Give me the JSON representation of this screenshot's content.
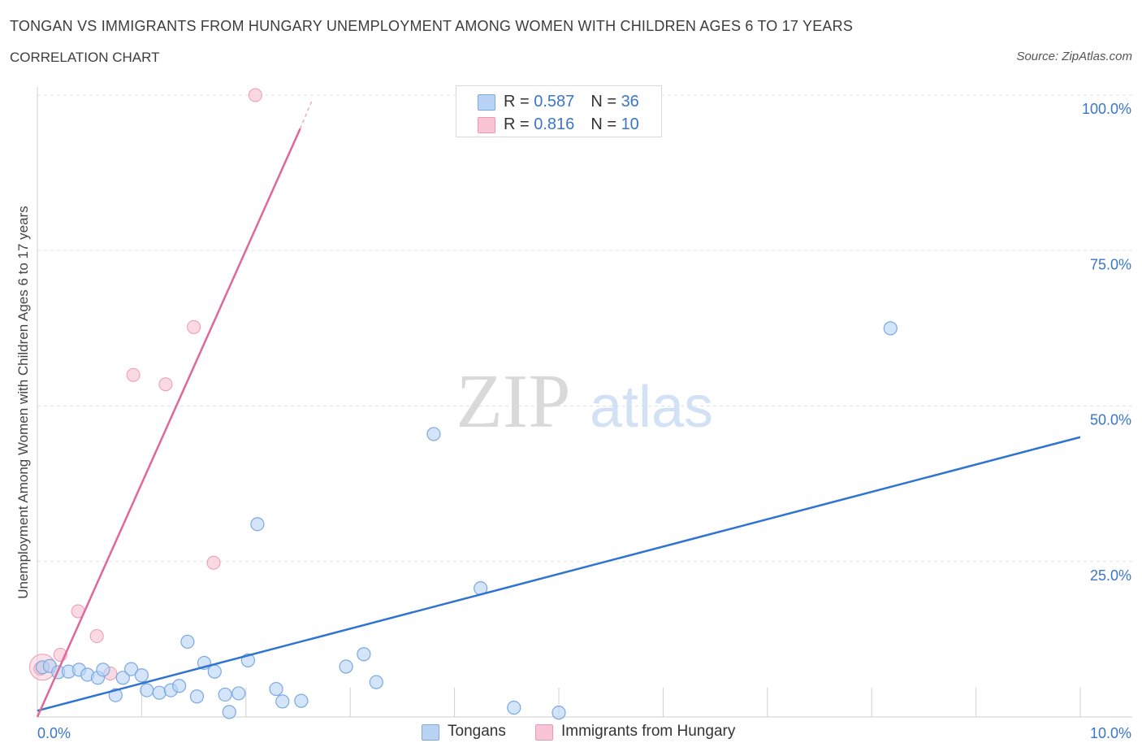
{
  "header": {
    "title": "TONGAN VS IMMIGRANTS FROM HUNGARY UNEMPLOYMENT AMONG WOMEN WITH CHILDREN AGES 6 TO 17 YEARS",
    "subtitle": "CORRELATION CHART",
    "source": "Source: ZipAtlas.com"
  },
  "watermark": {
    "zip": "ZIP",
    "atlas": "atlas"
  },
  "legend": {
    "tongans": {
      "r_label": "R = ",
      "r_value": "0.587",
      "n_label": "N = ",
      "n_value": "36"
    },
    "hungary": {
      "r_label": "R = ",
      "r_value": "0.816",
      "n_label": "N = ",
      "n_value": "10"
    }
  },
  "colors": {
    "tongans_fill": "#b9d3f5",
    "tongans_stroke": "#7aa9e0",
    "tongans_line": "#2f74d0",
    "hungary_fill": "#f9c4d3",
    "hungary_stroke": "#ec9ab3",
    "hungary_line": "#e0679a",
    "axis_text": "#3a76c9",
    "grid": "#e3e3e3"
  },
  "chart_data": {
    "type": "scatter",
    "title": "TONGAN VS IMMIGRANTS FROM HUNGARY UNEMPLOYMENT AMONG WOMEN WITH CHILDREN AGES 6 TO 17 YEARS",
    "xlabel": "",
    "ylabel": "Unemployment Among Women with Children Ages 6 to 17 years",
    "xlim": [
      0,
      10
    ],
    "ylim": [
      0,
      100
    ],
    "x_tick_labels": [
      "0.0%",
      "10.0%"
    ],
    "y_ticks": [
      25,
      50,
      75,
      100
    ],
    "y_tick_labels": [
      "25.0%",
      "50.0%",
      "75.0%",
      "100.0%"
    ],
    "grid": true,
    "series": [
      {
        "name": "Tongans",
        "r": 0.587,
        "n": 36,
        "points": [
          [
            0.05,
            8.0
          ],
          [
            0.12,
            8.2
          ],
          [
            0.2,
            7.2
          ],
          [
            0.3,
            7.3
          ],
          [
            0.4,
            7.6
          ],
          [
            0.48,
            6.8
          ],
          [
            0.58,
            6.3
          ],
          [
            0.63,
            7.6
          ],
          [
            0.75,
            3.5
          ],
          [
            0.82,
            6.3
          ],
          [
            0.9,
            7.7
          ],
          [
            1.0,
            6.7
          ],
          [
            1.05,
            4.3
          ],
          [
            1.17,
            3.9
          ],
          [
            1.28,
            4.3
          ],
          [
            1.36,
            5.0
          ],
          [
            1.44,
            12.1
          ],
          [
            1.53,
            3.3
          ],
          [
            1.6,
            8.7
          ],
          [
            1.7,
            7.3
          ],
          [
            1.8,
            3.6
          ],
          [
            1.84,
            0.8
          ],
          [
            1.93,
            3.8
          ],
          [
            2.02,
            9.1
          ],
          [
            2.11,
            31.0
          ],
          [
            2.29,
            4.5
          ],
          [
            2.35,
            2.5
          ],
          [
            2.53,
            2.6
          ],
          [
            2.96,
            8.1
          ],
          [
            3.13,
            10.1
          ],
          [
            3.25,
            5.6
          ],
          [
            3.8,
            45.5
          ],
          [
            4.25,
            20.7
          ],
          [
            4.57,
            1.5
          ],
          [
            5.0,
            0.7
          ],
          [
            8.18,
            62.5
          ]
        ],
        "trend": {
          "x": [
            0.0,
            10.0
          ],
          "y": [
            1.0,
            45.0
          ]
        }
      },
      {
        "name": "Immigrants from Hungary",
        "r": 0.816,
        "n": 10,
        "points": [
          [
            0.03,
            7.8
          ],
          [
            0.22,
            10.0
          ],
          [
            0.39,
            17.0
          ],
          [
            0.57,
            13.0
          ],
          [
            0.7,
            7.0
          ],
          [
            0.92,
            55.0
          ],
          [
            1.23,
            53.5
          ],
          [
            1.5,
            62.7
          ],
          [
            1.69,
            24.8
          ],
          [
            2.09,
            100.0
          ]
        ],
        "trend": {
          "x": [
            0.0,
            2.52
          ],
          "y": [
            0.0,
            94.6
          ]
        },
        "trend_dashed_ext": {
          "x": [
            2.52,
            2.63
          ],
          "y": [
            94.6,
            99.0
          ]
        }
      }
    ]
  },
  "bottom_legend": {
    "tongans": "Tongans",
    "hungary": "Immigrants from Hungary"
  }
}
